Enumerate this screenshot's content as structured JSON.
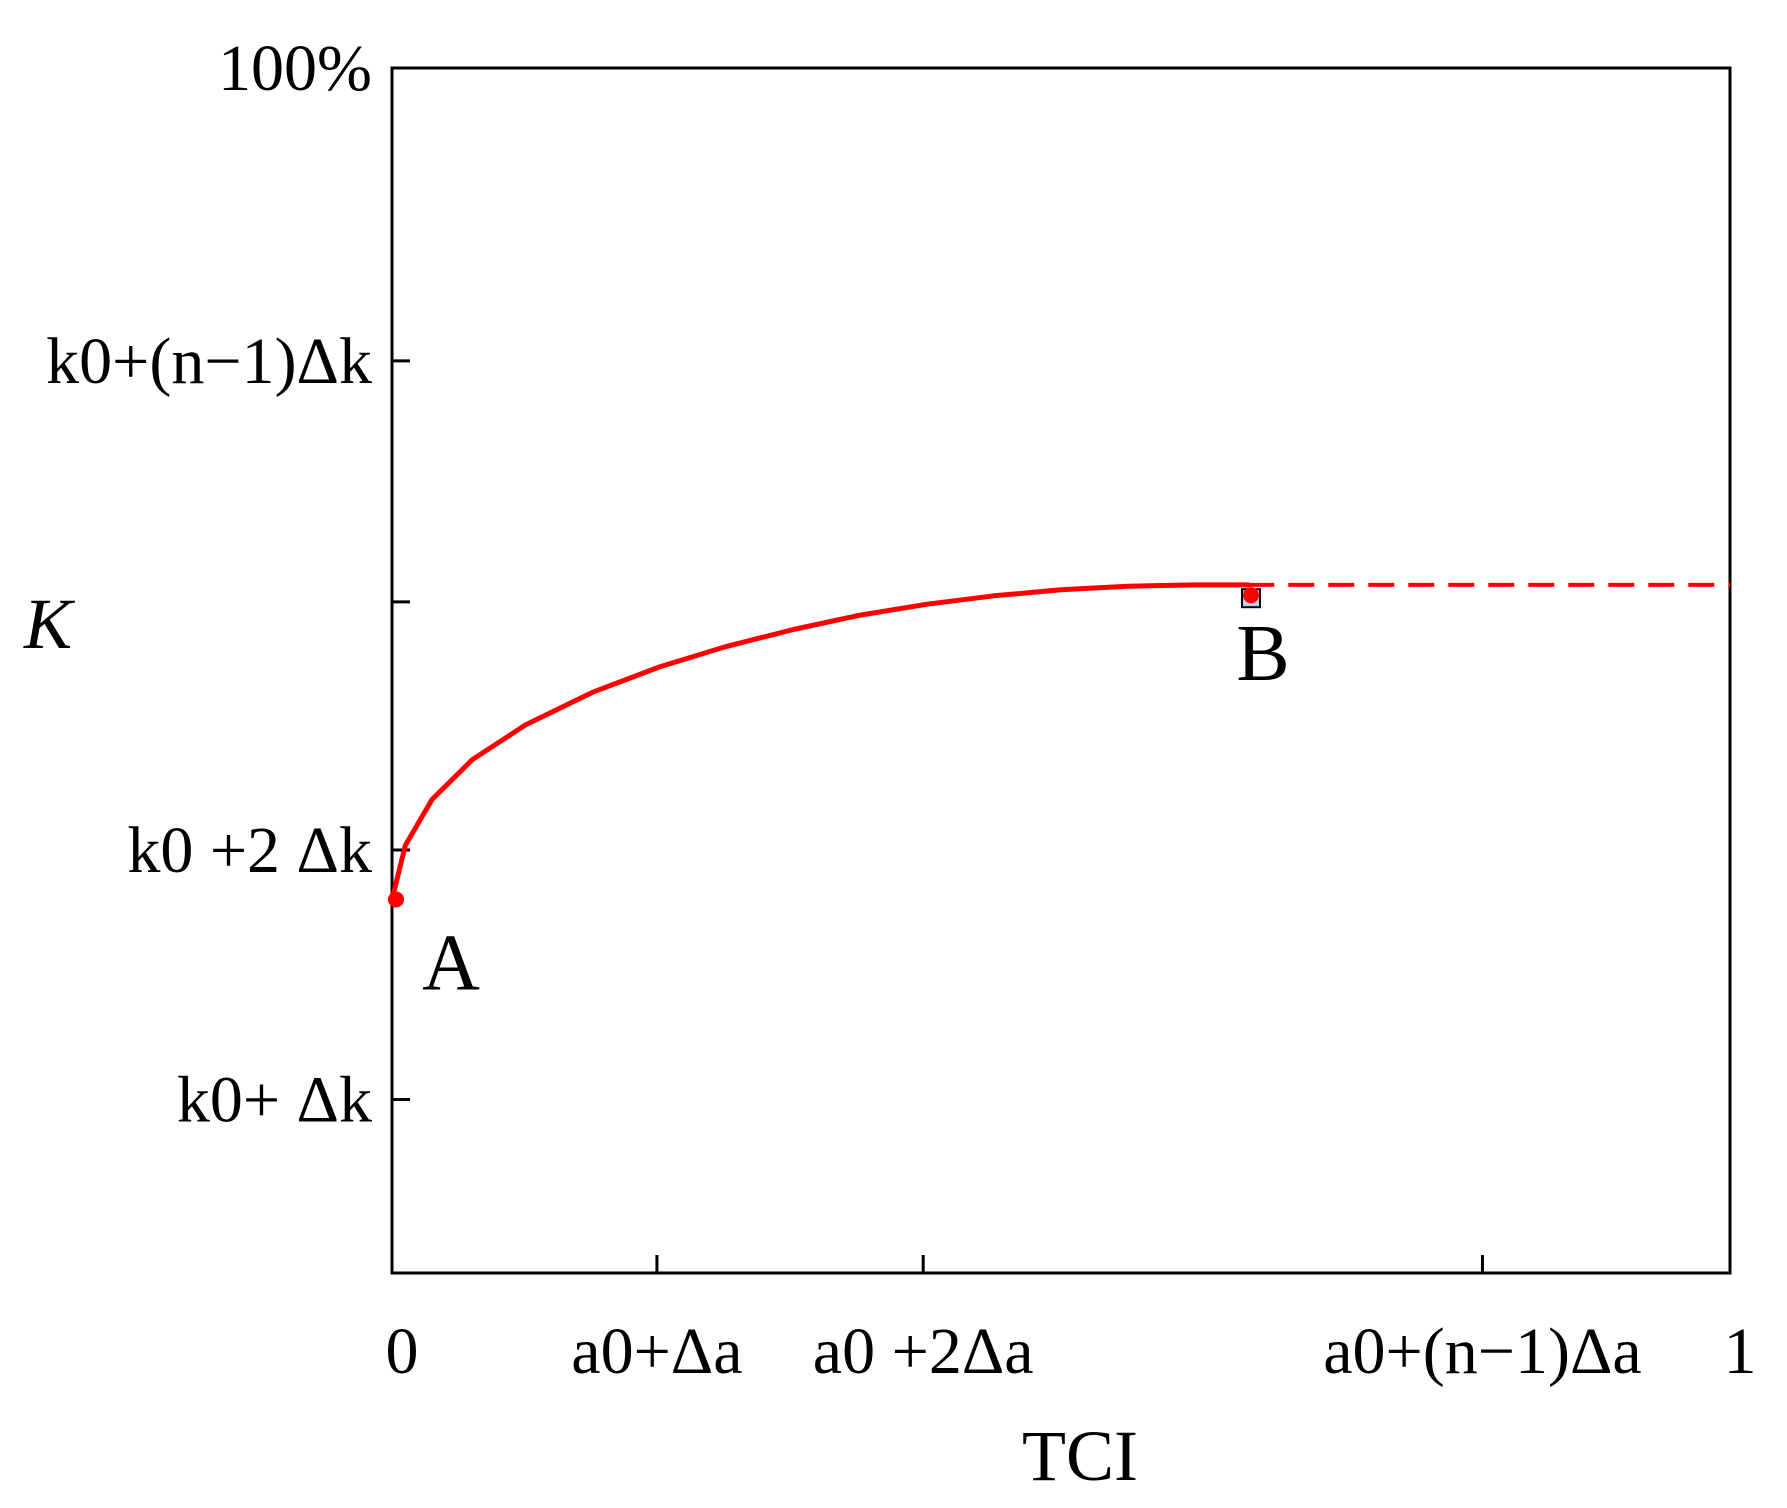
{
  "chart_data": {
    "type": "line",
    "xlabel": "TCI",
    "ylabel": "K",
    "x_ticks": [
      {
        "label": "0",
        "value": 0
      },
      {
        "label": "a0+Δa",
        "value": 0.198
      },
      {
        "label": "a0 +2Δa",
        "value": 0.397
      },
      {
        "label": "a0+(n−1)Δa",
        "value": 0.815
      },
      {
        "label": "1",
        "value": 1
      }
    ],
    "y_ticks": [
      {
        "label": "100%",
        "value": 1.0
      },
      {
        "label": "k0+(n−1)Δk",
        "value": 0.757
      },
      {
        "label": "k0 +2 Δk",
        "value": 0.351
      },
      {
        "label": "k0+ Δk",
        "value": 0.144
      }
    ],
    "xlim": [
      0,
      1
    ],
    "ylim": [
      0,
      1
    ],
    "series": [
      {
        "style": "solid",
        "color": "#ff0000",
        "x": [
          0,
          0.01,
          0.03,
          0.06,
          0.1,
          0.15,
          0.2,
          0.25,
          0.3,
          0.35,
          0.4,
          0.45,
          0.5,
          0.55,
          0.6,
          0.64
        ],
        "y": [
          0.31,
          0.355,
          0.393,
          0.426,
          0.455,
          0.482,
          0.503,
          0.52,
          0.534,
          0.546,
          0.555,
          0.562,
          0.567,
          0.57,
          0.571,
          0.571
        ]
      },
      {
        "style": "dashed",
        "color": "#ff0000",
        "x": [
          0.64,
          1.0
        ],
        "y": [
          0.571,
          0.571
        ]
      }
    ],
    "points": [
      {
        "label": "A",
        "x": 0.003,
        "y": 0.31
      },
      {
        "label": "B",
        "x": 0.642,
        "y": 0.56
      }
    ],
    "extra_y_ticks": [
      0.557
    ],
    "grid": false,
    "legend": "none"
  }
}
